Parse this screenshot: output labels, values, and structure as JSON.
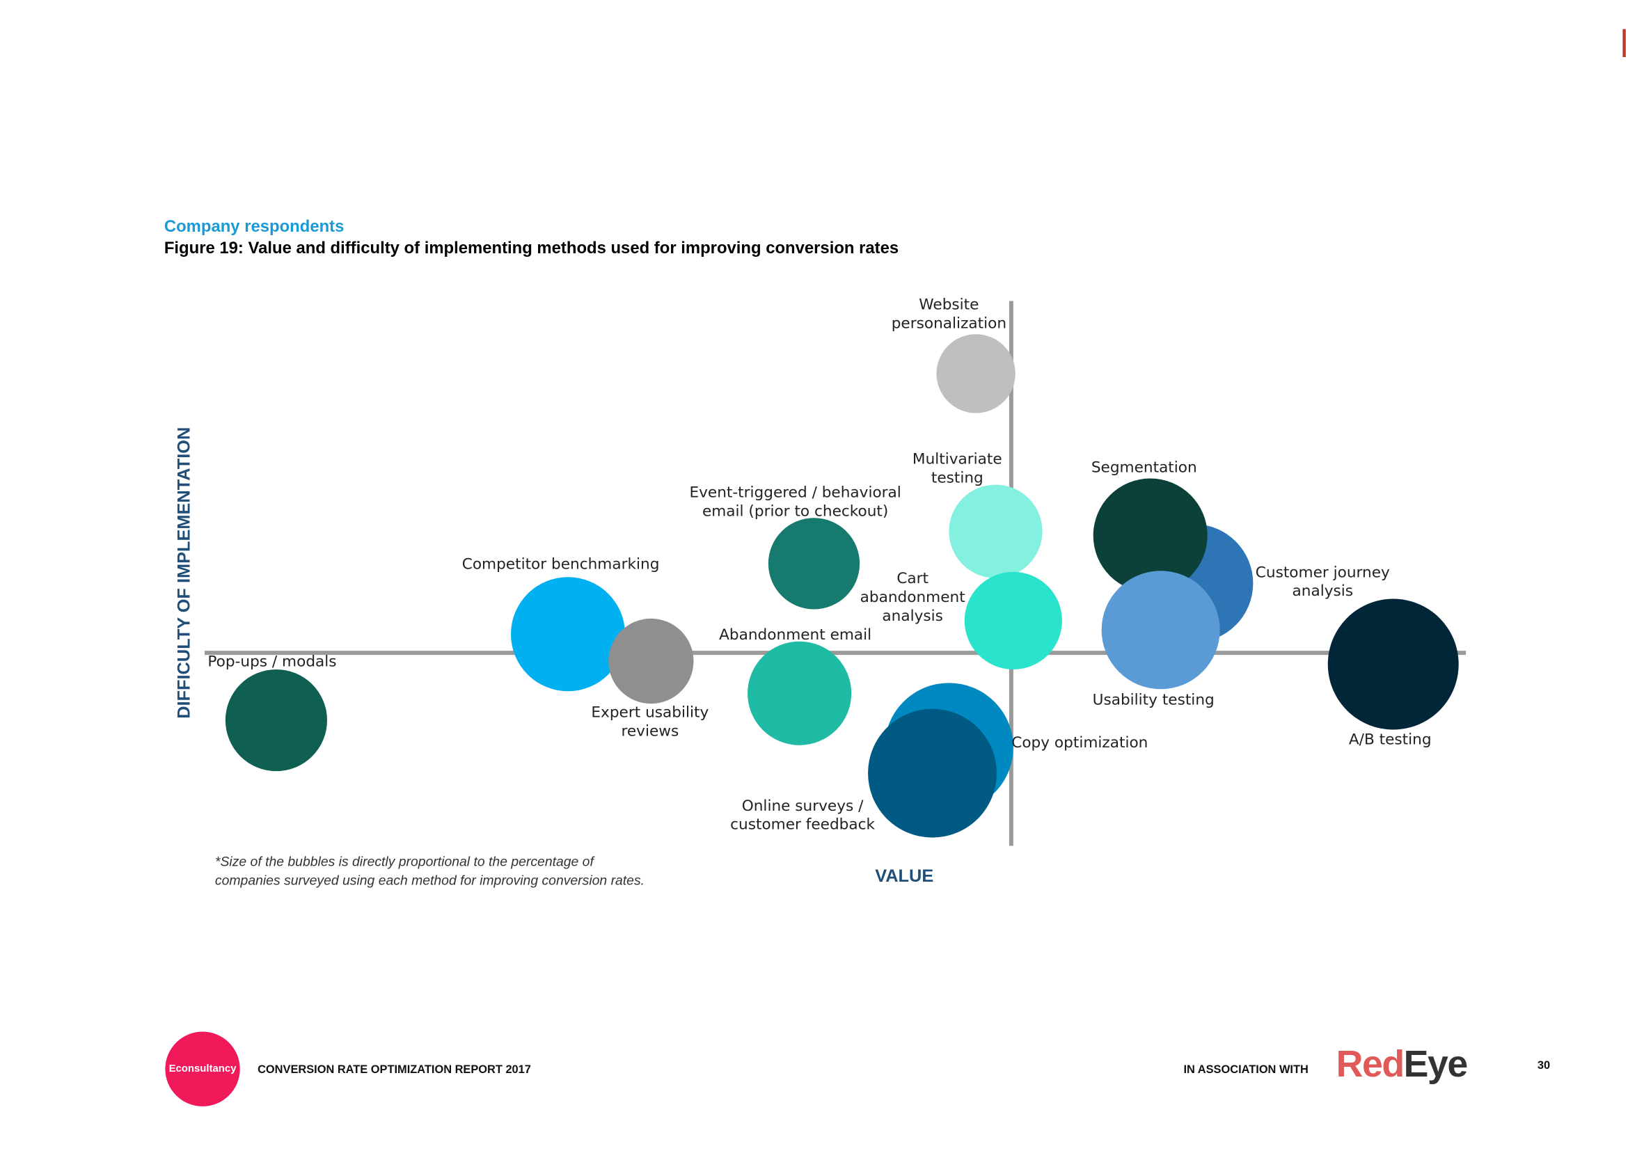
{
  "header": {
    "subtitle": "Company respondents",
    "title": "Figure 19: Value and difficulty of implementing methods used for improving conversion rates"
  },
  "chart": {
    "y_axis_label": "DIFFICULTY OF IMPLEMENTATION",
    "x_axis_label": "VALUE",
    "nodes": [
      {
        "label": [
          "Website",
          "personalization"
        ],
        "color": "#bfbfbf"
      },
      {
        "label": [
          "Multivariate",
          "testing"
        ],
        "color": "#84f0e0"
      },
      {
        "label": [
          "Customer journey",
          "analysis"
        ],
        "color": "#2e75b6"
      },
      {
        "label": [
          "Segmentation"
        ],
        "color": "#0b4139"
      },
      {
        "label": [
          "Event-triggered / behavioral",
          "email (prior to checkout)"
        ],
        "color": "#167a6e"
      },
      {
        "label": [
          "Competitor benchmarking"
        ],
        "color": "#00b0f0"
      },
      {
        "label": [
          "Cart",
          "abandonment",
          "analysis"
        ],
        "color": "#2ae3cc"
      },
      {
        "label": [
          "Usability testing"
        ],
        "color": "#5b9bd5"
      },
      {
        "label": [
          "Expert usability",
          "reviews"
        ],
        "color": "#8f8f8f"
      },
      {
        "label": [
          "Abandonment email"
        ],
        "color": "#1fbba5"
      },
      {
        "label": [
          "A/B testing"
        ],
        "color": "#002637"
      },
      {
        "label": [
          "Pop-ups / modals"
        ],
        "color": "#105f53"
      },
      {
        "label": [
          "Copy optimization"
        ],
        "color": "#0089c1"
      },
      {
        "label": [
          "Online surveys /",
          "customer feedback"
        ],
        "color": "#005a83"
      }
    ],
    "footnote": [
      "*Size of the bubbles is directly proportional to the percentage of",
      "companies surveyed using each method for improving conversion rates."
    ]
  },
  "footer": {
    "logo": "Econsultancy",
    "report": "CONVERSION RATE OPTIMIZATION REPORT 2017",
    "association": "IN ASSOCIATION WITH",
    "partner": [
      "Red",
      "Eye"
    ],
    "page": "30"
  }
}
